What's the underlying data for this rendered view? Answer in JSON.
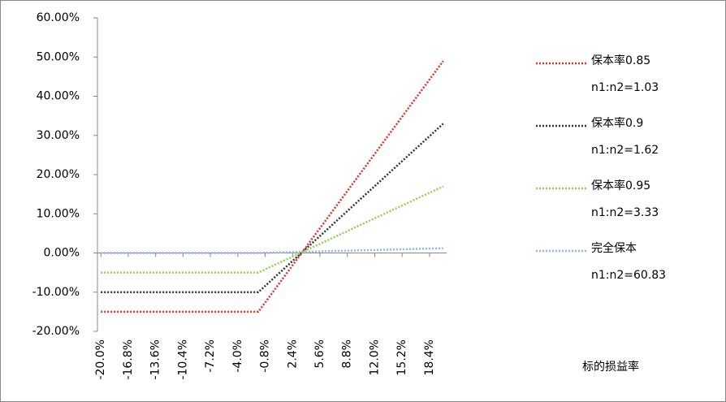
{
  "chart_data": {
    "type": "line",
    "x": [
      -20,
      -1.6,
      20
    ],
    "series": [
      {
        "name": "保本率0.85",
        "ratio_label": "n1:n2=1.03",
        "color": "#e0302a",
        "values": [
          -15,
          -15,
          49
        ]
      },
      {
        "name": "保本率0.9",
        "ratio_label": "n1:n2=1.62",
        "color": "#333333",
        "values": [
          -10,
          -10,
          33
        ]
      },
      {
        "name": "保本率0.95",
        "ratio_label": "n1:n2=3.33",
        "color": "#92d050",
        "values": [
          -5,
          -5,
          17
        ]
      },
      {
        "name": "完全保本",
        "ratio_label": "n1:n2=60.83",
        "color": "#8db4e2",
        "values": [
          0,
          0,
          1.2
        ]
      }
    ],
    "x_label": "标的损益率",
    "xlim": [
      -20.4,
      20.4
    ],
    "xticks": [
      {
        "value": -20,
        "label": "-20.0%"
      },
      {
        "value": -16.8,
        "label": "-16.8%"
      },
      {
        "value": -13.6,
        "label": "-13.6%"
      },
      {
        "value": -10.4,
        "label": "-10.4%"
      },
      {
        "value": -7.2,
        "label": "-7.2%"
      },
      {
        "value": -4,
        "label": "-4.0%"
      },
      {
        "value": -0.8,
        "label": "-0.8%"
      },
      {
        "value": 2.4,
        "label": "2.4%"
      },
      {
        "value": 5.6,
        "label": "5.6%"
      },
      {
        "value": 8.8,
        "label": "8.8%"
      },
      {
        "value": 12,
        "label": "12.0%"
      },
      {
        "value": 15.2,
        "label": "15.2%"
      },
      {
        "value": 18.4,
        "label": "18.4%"
      }
    ],
    "ylim": [
      -20,
      60
    ],
    "yticks": [
      {
        "value": -20,
        "label": "-20.00%"
      },
      {
        "value": -10,
        "label": "-10.00%"
      },
      {
        "value": 0,
        "label": "0.00%"
      },
      {
        "value": 10,
        "label": "10.00%"
      },
      {
        "value": 20,
        "label": "20.00%"
      },
      {
        "value": 30,
        "label": "30.00%"
      },
      {
        "value": 40,
        "label": "40.00%"
      },
      {
        "value": 50,
        "label": "50.00%"
      },
      {
        "value": 60,
        "label": "60.00%"
      }
    ],
    "legend": "right"
  }
}
